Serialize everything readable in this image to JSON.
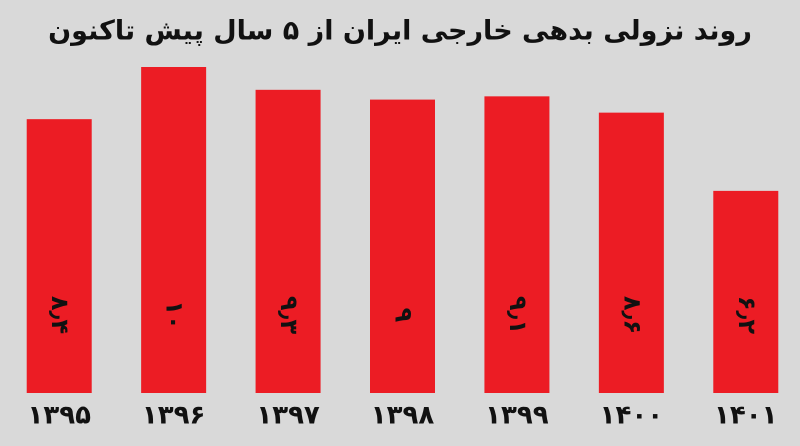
{
  "chart_data": {
    "type": "bar",
    "title": "روند نزولی بدهی خارجی ایران از ۵ سال پیش تاکنون",
    "categories": [
      "۱۳۹۵",
      "۱۳۹۶",
      "۱۳۹۷",
      "۱۳۹۸",
      "۱۳۹۹",
      "۱۴۰۰",
      "۱۴۰۱"
    ],
    "values": [
      8.4,
      10,
      9.3,
      9,
      9.1,
      8.6,
      6.2
    ],
    "value_labels": [
      "۸٫۴",
      "۱۰",
      "۹٫۳",
      "۹",
      "۹٫۱",
      "۸٫۶",
      "۶٫۲"
    ],
    "color": "#ec1c24"
  }
}
